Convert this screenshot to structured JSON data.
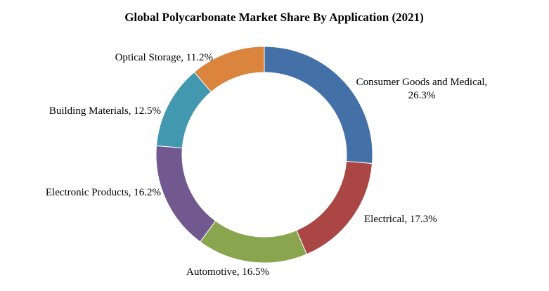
{
  "chart_data": {
    "type": "pie",
    "subtype": "donut",
    "title": "Global Polycarbonate Market Share By Application (2021)",
    "categories": [
      "Consumer Goods and Medical",
      "Electrical",
      "Automotive",
      "Electronic Products",
      "Building Materials",
      "Optical Storage"
    ],
    "values": [
      26.3,
      17.3,
      16.5,
      16.2,
      12.5,
      11.2
    ],
    "unit": "%",
    "labels": [
      [
        "Consumer Goods and Medical,",
        "26.3%"
      ],
      [
        "Electrical, 17.3%"
      ],
      [
        "Automotive, 16.5%"
      ],
      [
        "Electronic Products, 16.2%"
      ],
      [
        "Building Materials, 12.5%"
      ],
      [
        "Optical Storage, 11.2%"
      ]
    ],
    "colors": [
      "#4470a8",
      "#aa4644",
      "#89a54e",
      "#71588f",
      "#4198af",
      "#db843d"
    ],
    "legend": "none",
    "start_angle": "top",
    "direction": "clockwise"
  }
}
